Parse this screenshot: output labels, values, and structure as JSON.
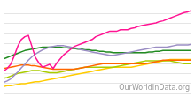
{
  "chart_data": {
    "type": "line",
    "annotation": "OurWorldInData.org",
    "x": [
      0,
      1,
      2,
      3,
      4,
      5,
      6,
      7,
      8,
      9,
      10,
      11,
      12,
      13,
      14,
      15,
      16,
      17,
      18,
      19,
      20,
      21,
      22,
      23,
      24,
      25,
      26,
      27,
      28,
      29,
      30,
      31,
      32,
      33,
      34,
      35,
      36,
      37,
      38,
      39,
      40,
      41,
      42,
      43,
      44,
      45,
      46,
      47,
      48,
      49,
      50,
      51,
      52,
      53
    ],
    "series": [
      {
        "color": "#ff1493",
        "values": [
          0.32,
          0.36,
          0.42,
          0.54,
          0.68,
          0.78,
          0.82,
          0.84,
          0.68,
          0.52,
          0.44,
          0.38,
          0.4,
          0.42,
          0.36,
          0.44,
          0.5,
          0.56,
          0.6,
          0.64,
          0.68,
          0.7,
          0.72,
          0.74,
          0.76,
          0.78,
          0.82,
          0.84,
          0.86,
          0.88,
          0.9,
          0.9,
          0.9,
          0.92,
          0.92,
          0.92,
          0.94,
          0.95,
          0.97,
          0.98,
          0.99,
          1.0,
          1.01,
          1.02,
          1.04,
          1.05,
          1.07,
          1.09,
          1.11,
          1.13,
          1.15,
          1.17,
          1.18,
          1.2
        ]
      },
      {
        "color": "#9b8ec4",
        "values": [
          0.16,
          0.18,
          0.21,
          0.26,
          0.31,
          0.37,
          0.42,
          0.48,
          0.53,
          0.57,
          0.6,
          0.63,
          0.65,
          0.67,
          0.68,
          0.69,
          0.69,
          0.69,
          0.68,
          0.67,
          0.66,
          0.65,
          0.63,
          0.62,
          0.61,
          0.6,
          0.59,
          0.58,
          0.57,
          0.56,
          0.55,
          0.55,
          0.56,
          0.57,
          0.58,
          0.59,
          0.6,
          0.61,
          0.62,
          0.63,
          0.64,
          0.65,
          0.66,
          0.67,
          0.67,
          0.67,
          0.67,
          0.68,
          0.69,
          0.7,
          0.7,
          0.7,
          0.7,
          0.71
        ]
      },
      {
        "color": "#228B22",
        "values": [
          0.5,
          0.52,
          0.54,
          0.56,
          0.58,
          0.6,
          0.62,
          0.63,
          0.64,
          0.65,
          0.66,
          0.67,
          0.67,
          0.67,
          0.67,
          0.67,
          0.67,
          0.66,
          0.66,
          0.65,
          0.65,
          0.64,
          0.64,
          0.63,
          0.63,
          0.62,
          0.62,
          0.61,
          0.61,
          0.6,
          0.6,
          0.59,
          0.59,
          0.59,
          0.59,
          0.59,
          0.59,
          0.59,
          0.59,
          0.59,
          0.59,
          0.6,
          0.6,
          0.61,
          0.61,
          0.62,
          0.62,
          0.62,
          0.62,
          0.62,
          0.62,
          0.62,
          0.62,
          0.62
        ]
      },
      {
        "color": "#ff6600",
        "values": [
          0.36,
          0.37,
          0.38,
          0.39,
          0.4,
          0.41,
          0.41,
          0.41,
          0.4,
          0.4,
          0.39,
          0.38,
          0.37,
          0.36,
          0.35,
          0.35,
          0.35,
          0.35,
          0.35,
          0.35,
          0.35,
          0.36,
          0.37,
          0.38,
          0.39,
          0.4,
          0.41,
          0.42,
          0.43,
          0.43,
          0.43,
          0.43,
          0.43,
          0.43,
          0.43,
          0.43,
          0.43,
          0.43,
          0.43,
          0.43,
          0.43,
          0.44,
          0.45,
          0.46,
          0.47,
          0.48,
          0.48,
          0.48,
          0.48,
          0.48,
          0.48,
          0.48,
          0.48,
          0.48
        ]
      },
      {
        "color": "#aacc00",
        "values": [
          0.22,
          0.23,
          0.25,
          0.27,
          0.29,
          0.3,
          0.31,
          0.32,
          0.33,
          0.33,
          0.33,
          0.32,
          0.31,
          0.3,
          0.3,
          0.3,
          0.31,
          0.32,
          0.33,
          0.34,
          0.35,
          0.36,
          0.37,
          0.38,
          0.38,
          0.38,
          0.38,
          0.38,
          0.38,
          0.38,
          0.38,
          0.38,
          0.39,
          0.4,
          0.41,
          0.42,
          0.43,
          0.44,
          0.45,
          0.46,
          0.47,
          0.47,
          0.47,
          0.47,
          0.47,
          0.47,
          0.47,
          0.47,
          0.46,
          0.45,
          0.44,
          0.43,
          0.43,
          0.43
        ]
      },
      {
        "color": "#ffcc00",
        "values": [
          0.1,
          0.11,
          0.11,
          0.12,
          0.13,
          0.14,
          0.14,
          0.15,
          0.16,
          0.17,
          0.17,
          0.18,
          0.19,
          0.2,
          0.21,
          0.22,
          0.23,
          0.24,
          0.25,
          0.26,
          0.27,
          0.28,
          0.29,
          0.3,
          0.31,
          0.32,
          0.33,
          0.34,
          0.35,
          0.36,
          0.37,
          0.38,
          0.38,
          0.38,
          0.38,
          0.38,
          0.38,
          0.39,
          0.4,
          0.41,
          0.42,
          0.43,
          0.44,
          0.45,
          0.46,
          0.47,
          0.48,
          0.49,
          0.49,
          0.49,
          0.49,
          0.49,
          0.49,
          0.49
        ]
      }
    ],
    "xlim": [
      0,
      53
    ],
    "ylim": [
      0.0,
      1.3
    ],
    "yticks": [
      0.0,
      0.14444444444444443,
      0.28888888888888886,
      0.43333333333333335,
      0.5777777777777777,
      0.7222222222222222,
      0.8666666666666667,
      1.011111111111111,
      1.1555555555555554,
      1.3
    ],
    "grid": true,
    "tick_labels": false
  }
}
